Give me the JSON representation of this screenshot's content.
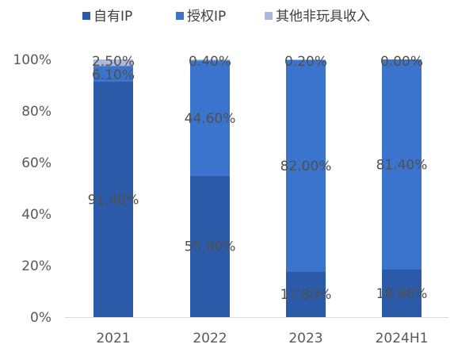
{
  "chart_data": {
    "type": "bar",
    "stacked": true,
    "categories": [
      "2021",
      "2022",
      "2023",
      "2024H1"
    ],
    "series": [
      {
        "name": "自有IP",
        "color": "#2B5BA8",
        "values": [
          91.4,
          55.0,
          17.8,
          18.6
        ],
        "labels": [
          "91.40%",
          "55.00%",
          "17.80%",
          "18.60%"
        ]
      },
      {
        "name": "授权IP",
        "color": "#3A74CC",
        "values": [
          6.1,
          44.6,
          82.0,
          81.4
        ],
        "labels": [
          "6.10%",
          "44.60%",
          "82.00%",
          "81.40%"
        ]
      },
      {
        "name": "其他非玩具收入",
        "color": "#A9B9E0",
        "values": [
          2.5,
          0.4,
          0.2,
          0.0
        ],
        "labels": [
          "2.50%",
          "0.40%",
          "0.20%",
          "0.00%"
        ]
      }
    ],
    "yticks": [
      "0%",
      "20%",
      "40%",
      "60%",
      "80%",
      "100%"
    ],
    "ylim": [
      0,
      100
    ],
    "grid": false,
    "legend": "top"
  }
}
